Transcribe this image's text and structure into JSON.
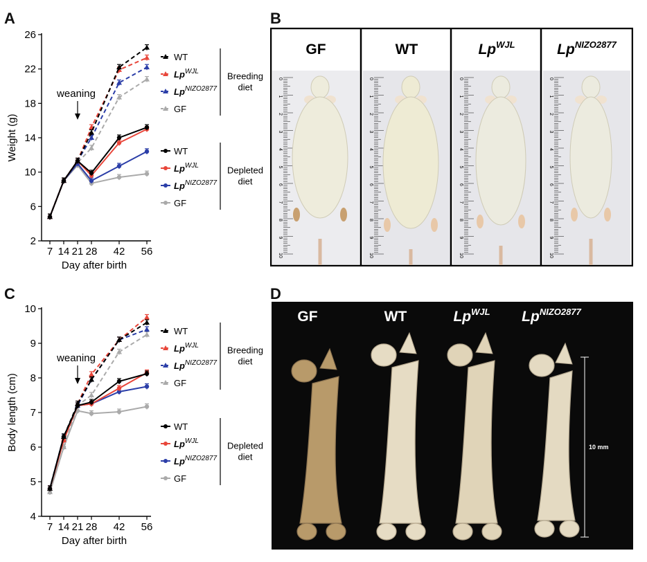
{
  "panels": {
    "A": "A",
    "B": "B",
    "C": "C",
    "D": "D"
  },
  "chart_data": [
    {
      "type": "line",
      "panel": "A",
      "ylabel": "Weight (g)",
      "xlabel": "Day after birth",
      "x": [
        7,
        14,
        21,
        28,
        42,
        56
      ],
      "x_tick_labels": [
        "7",
        "14",
        "21",
        "28",
        "42",
        "56"
      ],
      "ylim": [
        2,
        26
      ],
      "y_ticks": [
        2,
        6,
        10,
        14,
        18,
        22,
        26
      ],
      "annotation": "weaning",
      "annotation_x": 21,
      "legend_groups": [
        {
          "label": "Breeding diet",
          "lines": [
            "Breeding",
            "diet"
          ]
        },
        {
          "label": "Depleted diet",
          "lines": [
            "Depleted",
            "diet"
          ]
        }
      ],
      "series": [
        {
          "name": "WT",
          "sup": "",
          "diet": "Breeding",
          "color": "#000000",
          "marker": "triangle",
          "values": [
            4.8,
            9.0,
            11.3,
            14.6,
            22.2,
            24.5
          ]
        },
        {
          "name": "Lp",
          "sup": "WJL",
          "diet": "Breeding",
          "color": "#e8463a",
          "marker": "triangle",
          "values": [
            4.8,
            9.0,
            11.3,
            15.2,
            21.9,
            23.3
          ]
        },
        {
          "name": "Lp",
          "sup": "NIZO2877",
          "diet": "Breeding",
          "color": "#2b3ea8",
          "marker": "triangle",
          "values": [
            4.8,
            9.0,
            11.3,
            14.0,
            20.4,
            22.2
          ]
        },
        {
          "name": "GF",
          "sup": "",
          "diet": "Breeding",
          "color": "#aaaaaa",
          "marker": "triangle",
          "values": [
            4.8,
            9.0,
            11.1,
            12.8,
            18.7,
            20.8
          ]
        },
        {
          "name": "WT",
          "sup": "",
          "diet": "Depleted",
          "color": "#000000",
          "marker": "circle",
          "values": [
            4.8,
            9.0,
            11.3,
            9.9,
            14.0,
            15.2
          ]
        },
        {
          "name": "Lp",
          "sup": "WJL",
          "diet": "Depleted",
          "color": "#e8463a",
          "marker": "circle",
          "values": [
            4.8,
            9.0,
            11.3,
            9.6,
            13.4,
            15.0
          ]
        },
        {
          "name": "Lp",
          "sup": "NIZO2877",
          "diet": "Depleted",
          "color": "#2b3ea8",
          "marker": "circle",
          "values": [
            4.8,
            9.0,
            11.0,
            9.0,
            10.7,
            12.4
          ]
        },
        {
          "name": "GF",
          "sup": "",
          "diet": "Depleted",
          "color": "#aaaaaa",
          "marker": "circle",
          "values": [
            4.8,
            9.0,
            10.8,
            8.7,
            9.4,
            9.8
          ]
        }
      ]
    },
    {
      "type": "line",
      "panel": "C",
      "ylabel": "Body length (cm)",
      "xlabel": "Day after birth",
      "x": [
        7,
        14,
        21,
        28,
        42,
        56
      ],
      "x_tick_labels": [
        "7",
        "14",
        "21",
        "28",
        "42",
        "56"
      ],
      "ylim": [
        4,
        10
      ],
      "y_ticks": [
        4,
        5,
        6,
        7,
        8,
        9,
        10
      ],
      "annotation": "weaning",
      "annotation_x": 21,
      "legend_groups": [
        {
          "label": "Breeding diet",
          "lines": [
            "Breeding",
            "diet"
          ]
        },
        {
          "label": "Depleted diet",
          "lines": [
            "Depleted",
            "diet"
          ]
        }
      ],
      "series": [
        {
          "name": "WT",
          "sup": "",
          "diet": "Breeding",
          "color": "#000000",
          "marker": "triangle",
          "values": [
            4.8,
            6.3,
            7.25,
            7.95,
            9.1,
            9.6
          ]
        },
        {
          "name": "Lp",
          "sup": "WJL",
          "diet": "Breeding",
          "color": "#e8463a",
          "marker": "triangle",
          "values": [
            4.8,
            6.2,
            7.25,
            8.1,
            9.1,
            9.75
          ]
        },
        {
          "name": "Lp",
          "sup": "NIZO2877",
          "diet": "Breeding",
          "color": "#2b3ea8",
          "marker": "triangle",
          "values": [
            4.8,
            6.3,
            7.2,
            7.95,
            9.1,
            9.4
          ]
        },
        {
          "name": "GF",
          "sup": "",
          "diet": "Breeding",
          "color": "#aaaaaa",
          "marker": "triangle",
          "values": [
            4.7,
            6.0,
            7.2,
            7.5,
            8.75,
            9.25
          ]
        },
        {
          "name": "WT",
          "sup": "",
          "diet": "Depleted",
          "color": "#000000",
          "marker": "circle",
          "values": [
            4.8,
            6.3,
            7.2,
            7.3,
            7.9,
            8.12
          ]
        },
        {
          "name": "Lp",
          "sup": "WJL",
          "diet": "Depleted",
          "color": "#e8463a",
          "marker": "circle",
          "values": [
            4.8,
            6.2,
            7.2,
            7.25,
            7.7,
            8.15
          ]
        },
        {
          "name": "Lp",
          "sup": "NIZO2877",
          "diet": "Depleted",
          "color": "#2b3ea8",
          "marker": "circle",
          "values": [
            4.8,
            6.3,
            7.2,
            7.25,
            7.6,
            7.75
          ]
        },
        {
          "name": "GF",
          "sup": "",
          "diet": "Depleted",
          "color": "#aaaaaa",
          "marker": "circle",
          "values": [
            4.7,
            6.0,
            7.05,
            6.97,
            7.02,
            7.17
          ]
        }
      ]
    }
  ],
  "photo_B": {
    "headers": [
      {
        "name": "GF",
        "sup": ""
      },
      {
        "name": "WT",
        "sup": ""
      },
      {
        "name": "Lp",
        "sup": "WJL"
      },
      {
        "name": "Lp",
        "sup": "NIZO2877"
      }
    ],
    "ruler_labels": [
      "0",
      "1",
      "2",
      "3",
      "4",
      "5",
      "6",
      "7",
      "8",
      "9",
      "10"
    ]
  },
  "photo_D": {
    "headers": [
      {
        "name": "GF",
        "sup": ""
      },
      {
        "name": "WT",
        "sup": ""
      },
      {
        "name": "Lp",
        "sup": "WJL"
      },
      {
        "name": "Lp",
        "sup": "NIZO2877"
      }
    ],
    "scale_label": "10 mm"
  }
}
